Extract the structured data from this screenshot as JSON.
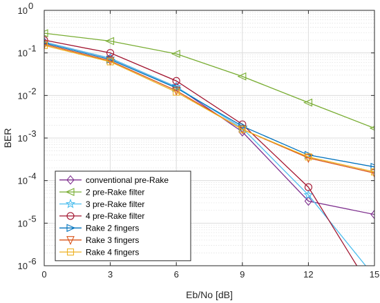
{
  "chart_data": {
    "type": "line",
    "xlabel": "Eb/No [dB]",
    "ylabel": "BER",
    "xlim": [
      0,
      15
    ],
    "ylim": [
      1e-06,
      1
    ],
    "yscale": "log",
    "xticks": [
      0,
      3,
      6,
      9,
      12,
      15
    ],
    "xtick_labels": [
      "0",
      "3",
      "6",
      "9",
      "12",
      "15"
    ],
    "yticks": [
      1e-06,
      1e-05,
      0.0001,
      0.001,
      0.01,
      0.1,
      1
    ],
    "ytick_labels": [
      {
        "base": "10",
        "exp": "-6"
      },
      {
        "base": "10",
        "exp": "-5"
      },
      {
        "base": "10",
        "exp": "-4"
      },
      {
        "base": "10",
        "exp": "-3"
      },
      {
        "base": "10",
        "exp": "-2"
      },
      {
        "base": "10",
        "exp": "-1"
      },
      {
        "base": "10",
        "exp": "0"
      }
    ],
    "grid": true,
    "minor_grid": true,
    "legend_position": "bottom-left",
    "series": [
      {
        "name": "conventional pre-Rake",
        "color": "#7E2F8E",
        "marker": "diamond",
        "x": [
          0,
          3,
          6,
          9,
          12,
          15
        ],
        "y": [
          0.18,
          0.075,
          0.016,
          0.0014,
          3.3e-05,
          1.6e-05
        ]
      },
      {
        "name": "2 pre-Rake filter",
        "color": "#77AC30",
        "marker": "triangle-left",
        "x": [
          0,
          3,
          6,
          9,
          12,
          15
        ],
        "y": [
          0.29,
          0.19,
          0.095,
          0.028,
          0.0068,
          0.0017
        ]
      },
      {
        "name": "3 pre-Rake filter",
        "color": "#4DBEEE",
        "marker": "star",
        "x": [
          0,
          3,
          6,
          9,
          12,
          14.6
        ],
        "y": [
          0.18,
          0.075,
          0.016,
          0.0017,
          4.6e-05,
          1e-06
        ]
      },
      {
        "name": "4 pre-Rake filter",
        "color": "#A2142F",
        "marker": "circle",
        "x": [
          0,
          3,
          6,
          9,
          12,
          14.2
        ],
        "y": [
          0.2,
          0.1,
          0.022,
          0.0021,
          7e-05,
          1e-06
        ]
      },
      {
        "name": "Rake 2 fingers",
        "color": "#0072BD",
        "marker": "triangle-right",
        "x": [
          0,
          3,
          6,
          9,
          12,
          15
        ],
        "y": [
          0.17,
          0.07,
          0.015,
          0.0019,
          0.0004,
          0.00021
        ]
      },
      {
        "name": "Rake 3 fingers",
        "color": "#D95319",
        "marker": "triangle-down",
        "x": [
          0,
          3,
          6,
          9,
          12,
          15
        ],
        "y": [
          0.16,
          0.065,
          0.013,
          0.0016,
          0.00034,
          0.00015
        ]
      },
      {
        "name": "Rake 4 fingers",
        "color": "#EDB120",
        "marker": "square",
        "x": [
          0,
          3,
          6,
          9,
          12,
          15
        ],
        "y": [
          0.15,
          0.062,
          0.012,
          0.0016,
          0.00036,
          0.00016
        ]
      }
    ]
  }
}
